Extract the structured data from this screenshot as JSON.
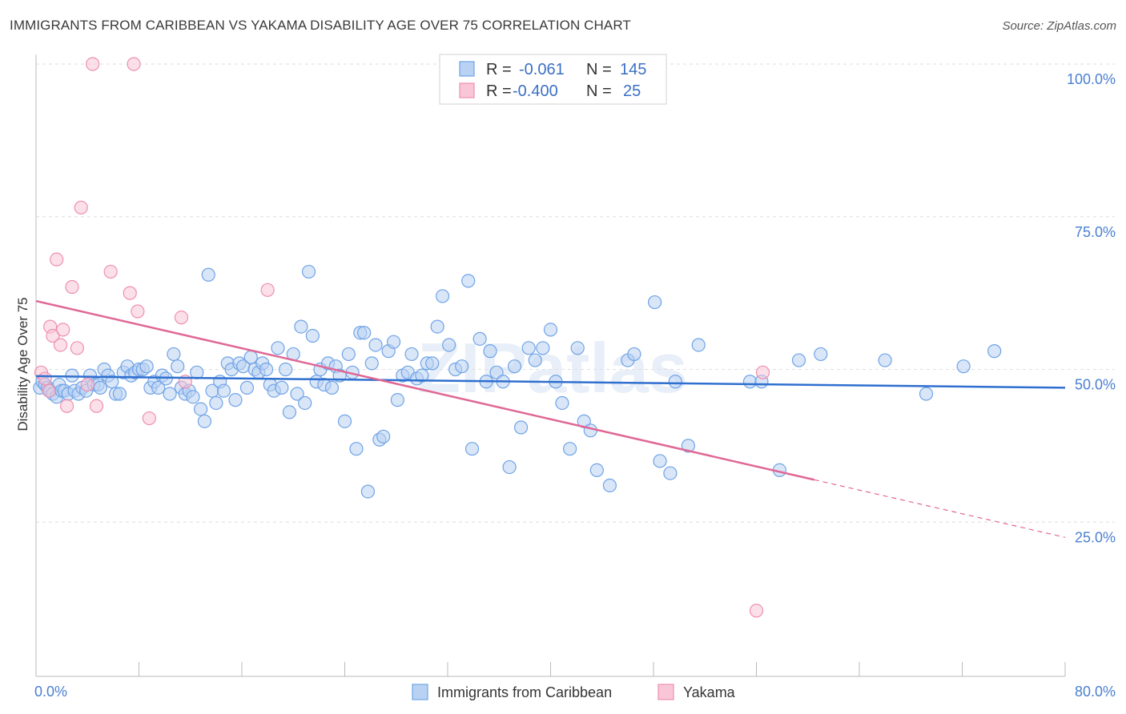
{
  "title": "IMMIGRANTS FROM CARIBBEAN VS YAKAMA DISABILITY AGE OVER 75 CORRELATION CHART",
  "source": "Source: ZipAtlas.com",
  "watermark": "ZIPatlas",
  "colors": {
    "blue": "#6fa3e6",
    "blue_fill": "#b9d2f3",
    "blue_line": "#2f6fcf",
    "pink": "#ee8fb0",
    "pink_fill": "#f8c6d7",
    "pink_line": "#e06795",
    "grid": "#dedede",
    "tick_text": "#4a7fd0"
  },
  "legend": {
    "rows": [
      {
        "r_label": "R =",
        "r_value": "-0.061",
        "n_label": "N =",
        "n_value": "145"
      },
      {
        "r_label": "R =",
        "r_value": "-0.400",
        "n_label": "N =",
        "n_value": "25"
      }
    ]
  },
  "chart_data": {
    "type": "scatter",
    "title": "IMMIGRANTS FROM CARIBBEAN VS YAKAMA DISABILITY AGE OVER 75 CORRELATION CHART",
    "xlabel": "",
    "ylabel": "Disability Age Over 75",
    "xlim": [
      0,
      80
    ],
    "ylim": [
      0,
      100
    ],
    "x_tick_labels": [
      "0.0%",
      "80.0%"
    ],
    "y_tick_labels": [
      "100.0%",
      "75.0%",
      "50.0%",
      "25.0%"
    ],
    "y_ticks": [
      100,
      75,
      50,
      25
    ],
    "grid": true,
    "legend_position": "top-center",
    "series": [
      {
        "name": "Immigrants from Caribbean",
        "color": "#6fa3e6",
        "trend": {
          "x": [
            0,
            80
          ],
          "y": [
            48.9,
            47.0
          ]
        },
        "points": [
          [
            0.3,
            47
          ],
          [
            0.5,
            48
          ],
          [
            0.7,
            47.5
          ],
          [
            0.9,
            47
          ],
          [
            1.1,
            46.5
          ],
          [
            1.3,
            46
          ],
          [
            1.6,
            45.5
          ],
          [
            1.8,
            47.5
          ],
          [
            2.0,
            46.5
          ],
          [
            2.2,
            46.5
          ],
          [
            2.5,
            46
          ],
          [
            2.8,
            49
          ],
          [
            3.0,
            46.5
          ],
          [
            3.3,
            46
          ],
          [
            3.6,
            47
          ],
          [
            3.9,
            46.5
          ],
          [
            4.2,
            49
          ],
          [
            4.5,
            47.5
          ],
          [
            4.8,
            47.5
          ],
          [
            5.0,
            47
          ],
          [
            5.3,
            50
          ],
          [
            5.6,
            49
          ],
          [
            5.9,
            48
          ],
          [
            6.2,
            46
          ],
          [
            6.5,
            46
          ],
          [
            6.8,
            49.5
          ],
          [
            7.1,
            50.5
          ],
          [
            7.4,
            49
          ],
          [
            7.7,
            49.5
          ],
          [
            8.0,
            50
          ],
          [
            8.3,
            50
          ],
          [
            8.6,
            50.5
          ],
          [
            8.9,
            47
          ],
          [
            9.2,
            48
          ],
          [
            9.5,
            47
          ],
          [
            9.8,
            49
          ],
          [
            10.1,
            48.5
          ],
          [
            10.4,
            46
          ],
          [
            10.7,
            52.5
          ],
          [
            11.0,
            50.5
          ],
          [
            11.3,
            47
          ],
          [
            11.6,
            46
          ],
          [
            11.9,
            46.5
          ],
          [
            12.2,
            45.5
          ],
          [
            12.5,
            49.5
          ],
          [
            12.8,
            43.5
          ],
          [
            13.1,
            41.5
          ],
          [
            13.4,
            65.5
          ],
          [
            13.7,
            46.5
          ],
          [
            14.0,
            44.5
          ],
          [
            14.3,
            48
          ],
          [
            14.6,
            46.5
          ],
          [
            14.9,
            51
          ],
          [
            15.2,
            50
          ],
          [
            15.5,
            45
          ],
          [
            15.8,
            51
          ],
          [
            16.1,
            50.5
          ],
          [
            16.4,
            47
          ],
          [
            16.7,
            52
          ],
          [
            17.0,
            50
          ],
          [
            17.3,
            49.5
          ],
          [
            17.6,
            51
          ],
          [
            17.9,
            50
          ],
          [
            18.2,
            47.5
          ],
          [
            18.5,
            46.5
          ],
          [
            18.8,
            53.5
          ],
          [
            19.1,
            47
          ],
          [
            19.4,
            50
          ],
          [
            19.7,
            43
          ],
          [
            20.0,
            52.5
          ],
          [
            20.3,
            46
          ],
          [
            20.6,
            57
          ],
          [
            20.9,
            44.5
          ],
          [
            21.2,
            66
          ],
          [
            21.5,
            55.5
          ],
          [
            21.8,
            48
          ],
          [
            22.1,
            50
          ],
          [
            22.4,
            47.5
          ],
          [
            22.7,
            51
          ],
          [
            23.0,
            47
          ],
          [
            23.3,
            50.5
          ],
          [
            23.6,
            49
          ],
          [
            24.0,
            41.5
          ],
          [
            24.3,
            52.5
          ],
          [
            24.6,
            49.5
          ],
          [
            24.9,
            37
          ],
          [
            25.2,
            56
          ],
          [
            25.5,
            56
          ],
          [
            25.8,
            30
          ],
          [
            26.1,
            51
          ],
          [
            26.4,
            54
          ],
          [
            26.7,
            38.5
          ],
          [
            27.0,
            39
          ],
          [
            27.4,
            53
          ],
          [
            27.8,
            54.5
          ],
          [
            28.1,
            45
          ],
          [
            28.5,
            49
          ],
          [
            28.9,
            49.5
          ],
          [
            29.2,
            52.5
          ],
          [
            29.6,
            48.5
          ],
          [
            30.0,
            49
          ],
          [
            30.4,
            51
          ],
          [
            30.8,
            51
          ],
          [
            31.2,
            57
          ],
          [
            31.6,
            62
          ],
          [
            32.1,
            54
          ],
          [
            32.6,
            50
          ],
          [
            33.1,
            50.5
          ],
          [
            33.6,
            64.5
          ],
          [
            33.9,
            37
          ],
          [
            34.5,
            55
          ],
          [
            35.0,
            48
          ],
          [
            35.3,
            53
          ],
          [
            35.8,
            49.5
          ],
          [
            36.3,
            48
          ],
          [
            36.8,
            34
          ],
          [
            37.2,
            50.5
          ],
          [
            37.7,
            40.5
          ],
          [
            38.3,
            53.5
          ],
          [
            38.8,
            51.5
          ],
          [
            39.4,
            53.5
          ],
          [
            40.0,
            56.5
          ],
          [
            40.4,
            48
          ],
          [
            40.9,
            44.5
          ],
          [
            41.5,
            37
          ],
          [
            42.1,
            53.5
          ],
          [
            42.6,
            41.5
          ],
          [
            43.1,
            40
          ],
          [
            43.6,
            33.5
          ],
          [
            44.6,
            31
          ],
          [
            46.0,
            51.5
          ],
          [
            46.5,
            52.5
          ],
          [
            48.1,
            61
          ],
          [
            48.5,
            35
          ],
          [
            49.3,
            33
          ],
          [
            49.7,
            48
          ],
          [
            50.7,
            37.5
          ],
          [
            51.5,
            54
          ],
          [
            55.5,
            48
          ],
          [
            56.4,
            48
          ],
          [
            57.8,
            33.5
          ],
          [
            59.3,
            51.5
          ],
          [
            61.0,
            52.5
          ],
          [
            66.0,
            51.5
          ],
          [
            69.2,
            46
          ],
          [
            72.1,
            50.5
          ],
          [
            74.5,
            53
          ]
        ]
      },
      {
        "name": "Yakama",
        "color": "#ee8fb0",
        "trend": {
          "x": [
            0,
            80
          ],
          "y": [
            61.2,
            22.5
          ],
          "solid_until_x": 60.5
        },
        "points": [
          [
            0.4,
            49.5
          ],
          [
            0.7,
            48.5
          ],
          [
            1.0,
            46.5
          ],
          [
            1.1,
            57
          ],
          [
            1.3,
            55.5
          ],
          [
            1.6,
            68
          ],
          [
            1.9,
            54
          ],
          [
            2.1,
            56.5
          ],
          [
            2.4,
            44
          ],
          [
            2.8,
            63.5
          ],
          [
            3.2,
            53.5
          ],
          [
            3.5,
            76.5
          ],
          [
            4.0,
            47.5
          ],
          [
            4.4,
            100
          ],
          [
            4.7,
            44
          ],
          [
            5.8,
            66
          ],
          [
            7.3,
            62.5
          ],
          [
            7.6,
            100
          ],
          [
            7.9,
            59.5
          ],
          [
            8.8,
            42
          ],
          [
            11.3,
            58.5
          ],
          [
            11.6,
            48
          ],
          [
            18.0,
            63
          ],
          [
            56.5,
            49.5
          ],
          [
            56.0,
            10.5
          ]
        ]
      }
    ]
  }
}
